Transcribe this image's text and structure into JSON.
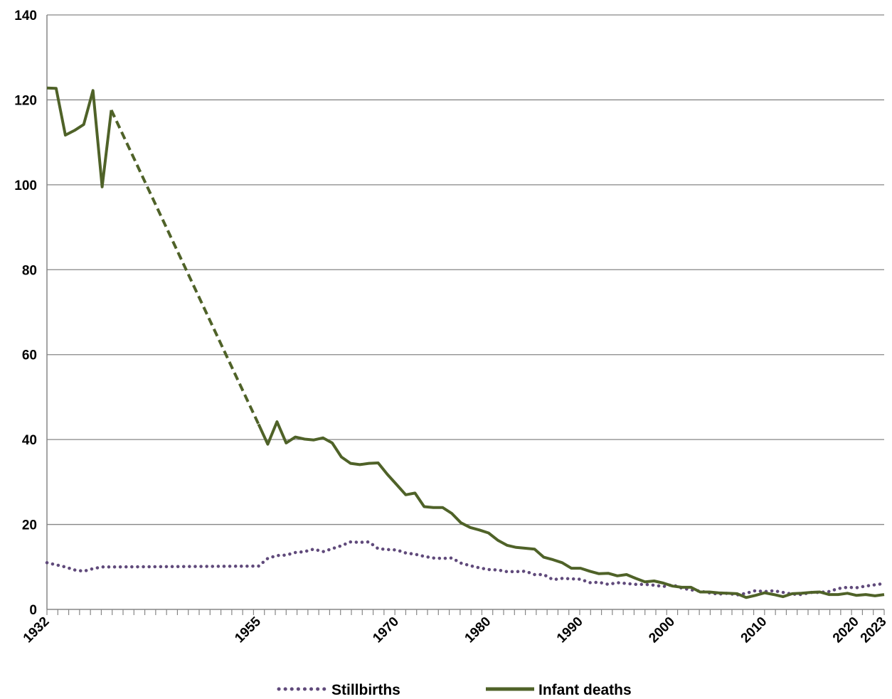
{
  "chart_data": {
    "type": "line",
    "title": "",
    "xlabel": "",
    "ylabel": "",
    "xlim": [
      1932,
      2023
    ],
    "ylim": [
      0,
      140
    ],
    "yticks": [
      0,
      20,
      40,
      60,
      80,
      100,
      120,
      140
    ],
    "ytick_labels": [
      "0",
      "20",
      "40",
      "60",
      "80",
      "100",
      "120",
      "140"
    ],
    "xtick_labels": [
      {
        "year": 1932,
        "label": "1932"
      },
      {
        "year": 1955,
        "label": "1955"
      },
      {
        "year": 1970,
        "label": "1970"
      },
      {
        "year": 1980,
        "label": "1980"
      },
      {
        "year": 1990,
        "label": "1990"
      },
      {
        "year": 2000,
        "label": "2000"
      },
      {
        "year": 2010,
        "label": "2010"
      },
      {
        "year": 2020,
        "label": "2020"
      },
      {
        "year": 2023,
        "label": "2023"
      }
    ],
    "grid": "horizontal",
    "legend_position": "bottom-center",
    "series": [
      {
        "name": "Stillbirths",
        "color": "#604A7B",
        "style": "dotted",
        "points": [
          [
            1932,
            11.0
          ],
          [
            1933,
            10.5
          ],
          [
            1934,
            10.0
          ],
          [
            1935,
            9.3
          ],
          [
            1936,
            9.0
          ],
          [
            1937,
            9.6
          ],
          [
            1938,
            10.0
          ],
          [
            1939,
            10.0
          ],
          [
            1955,
            10.2
          ],
          [
            1956,
            12.0
          ],
          [
            1957,
            12.7
          ],
          [
            1958,
            12.8
          ],
          [
            1959,
            13.4
          ],
          [
            1960,
            13.6
          ],
          [
            1961,
            14.2
          ],
          [
            1962,
            13.6
          ],
          [
            1963,
            14.3
          ],
          [
            1964,
            15.0
          ],
          [
            1965,
            15.9
          ],
          [
            1966,
            15.8
          ],
          [
            1967,
            15.9
          ],
          [
            1968,
            14.3
          ],
          [
            1969,
            14.1
          ],
          [
            1970,
            14.0
          ],
          [
            1971,
            13.3
          ],
          [
            1972,
            13.0
          ],
          [
            1973,
            12.5
          ],
          [
            1974,
            12.1
          ],
          [
            1975,
            12.0
          ],
          [
            1976,
            12.1
          ],
          [
            1977,
            10.9
          ],
          [
            1978,
            10.3
          ],
          [
            1979,
            9.8
          ],
          [
            1980,
            9.4
          ],
          [
            1981,
            9.3
          ],
          [
            1982,
            8.9
          ],
          [
            1983,
            8.9
          ],
          [
            1984,
            9.0
          ],
          [
            1985,
            8.2
          ],
          [
            1986,
            8.2
          ],
          [
            1987,
            7.0
          ],
          [
            1988,
            7.3
          ],
          [
            1989,
            7.2
          ],
          [
            1990,
            7.1
          ],
          [
            1991,
            6.3
          ],
          [
            1992,
            6.4
          ],
          [
            1993,
            5.9
          ],
          [
            1994,
            6.3
          ],
          [
            1995,
            6.1
          ],
          [
            1996,
            5.9
          ],
          [
            1997,
            5.9
          ],
          [
            1998,
            5.7
          ],
          [
            1999,
            5.4
          ],
          [
            2000,
            5.8
          ],
          [
            2001,
            5.0
          ],
          [
            2002,
            4.6
          ],
          [
            2003,
            4.3
          ],
          [
            2004,
            3.9
          ],
          [
            2005,
            3.6
          ],
          [
            2006,
            3.8
          ],
          [
            2007,
            3.4
          ],
          [
            2008,
            3.8
          ],
          [
            2009,
            4.4
          ],
          [
            2010,
            4.2
          ],
          [
            2011,
            4.4
          ],
          [
            2012,
            4.0
          ],
          [
            2013,
            3.6
          ],
          [
            2014,
            3.5
          ],
          [
            2015,
            4.0
          ],
          [
            2016,
            4.0
          ],
          [
            2017,
            4.2
          ],
          [
            2018,
            4.9
          ],
          [
            2019,
            5.2
          ],
          [
            2020,
            5.1
          ],
          [
            2021,
            5.5
          ],
          [
            2022,
            5.8
          ],
          [
            2023,
            6.1
          ]
        ]
      },
      {
        "name": "Infant deaths",
        "color": "#4F6228",
        "style": "solid",
        "segments": [
          {
            "style": "solid",
            "points": [
              [
                1932,
                122.8
              ],
              [
                1933,
                122.7
              ],
              [
                1934,
                111.7
              ],
              [
                1935,
                112.8
              ],
              [
                1936,
                114.2
              ],
              [
                1937,
                122.2
              ],
              [
                1938,
                99.5
              ],
              [
                1939,
                117.6
              ]
            ]
          },
          {
            "style": "dashed",
            "points": [
              [
                1939,
                117.6
              ],
              [
                1955,
                43.6
              ]
            ]
          },
          {
            "style": "solid",
            "points": [
              [
                1955,
                43.6
              ],
              [
                1956,
                38.9
              ],
              [
                1957,
                44.2
              ],
              [
                1958,
                39.2
              ],
              [
                1959,
                40.6
              ],
              [
                1960,
                40.1
              ],
              [
                1961,
                39.9
              ],
              [
                1962,
                40.4
              ],
              [
                1963,
                39.2
              ],
              [
                1964,
                35.9
              ],
              [
                1965,
                34.4
              ],
              [
                1966,
                34.1
              ],
              [
                1967,
                34.4
              ],
              [
                1968,
                34.5
              ],
              [
                1969,
                31.8
              ],
              [
                1970,
                29.4
              ],
              [
                1971,
                27.0
              ],
              [
                1972,
                27.4
              ],
              [
                1973,
                24.2
              ],
              [
                1974,
                24.0
              ],
              [
                1975,
                24.0
              ],
              [
                1976,
                22.6
              ],
              [
                1977,
                20.4
              ],
              [
                1978,
                19.3
              ],
              [
                1979,
                18.7
              ],
              [
                1980,
                18.0
              ],
              [
                1981,
                16.3
              ],
              [
                1982,
                15.1
              ],
              [
                1983,
                14.6
              ],
              [
                1984,
                14.4
              ],
              [
                1985,
                14.2
              ],
              [
                1986,
                12.3
              ],
              [
                1987,
                11.7
              ],
              [
                1988,
                11.0
              ],
              [
                1989,
                9.7
              ],
              [
                1990,
                9.7
              ],
              [
                1991,
                9.0
              ],
              [
                1992,
                8.4
              ],
              [
                1993,
                8.5
              ],
              [
                1994,
                7.9
              ],
              [
                1995,
                8.2
              ],
              [
                1996,
                7.3
              ],
              [
                1997,
                6.5
              ],
              [
                1998,
                6.7
              ],
              [
                1999,
                6.2
              ],
              [
                2000,
                5.5
              ],
              [
                2001,
                5.2
              ],
              [
                2002,
                5.2
              ],
              [
                2003,
                4.1
              ],
              [
                2004,
                4.1
              ],
              [
                2005,
                3.9
              ],
              [
                2006,
                3.8
              ],
              [
                2007,
                3.7
              ],
              [
                2008,
                2.8
              ],
              [
                2009,
                3.3
              ],
              [
                2010,
                3.9
              ],
              [
                2011,
                3.5
              ],
              [
                2012,
                3.0
              ],
              [
                2013,
                3.7
              ],
              [
                2014,
                3.8
              ],
              [
                2015,
                4.0
              ],
              [
                2016,
                4.1
              ],
              [
                2017,
                3.5
              ],
              [
                2018,
                3.5
              ],
              [
                2019,
                3.8
              ],
              [
                2020,
                3.3
              ],
              [
                2021,
                3.5
              ],
              [
                2022,
                3.2
              ],
              [
                2023,
                3.5
              ]
            ]
          }
        ]
      }
    ]
  }
}
